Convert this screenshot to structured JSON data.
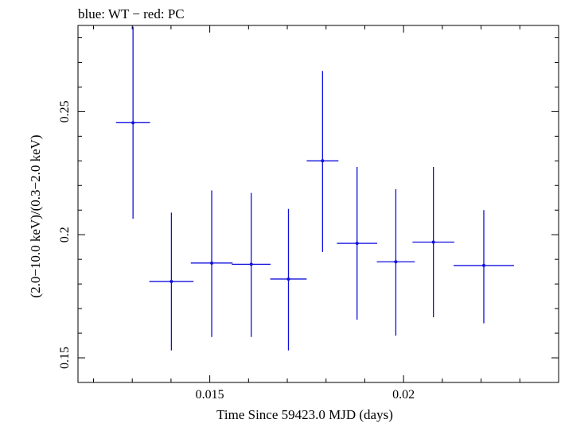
{
  "chart_data": {
    "type": "scatter",
    "title": "blue: WT − red: PC",
    "xlabel": "Time Since 59423.0 MJD (days)",
    "ylabel": "(2.0−10.0 keV)/(0.3−2.0 keV)",
    "xlim": [
      0.0116,
      0.024
    ],
    "ylim": [
      0.14,
      0.285
    ],
    "x_ticks": [
      {
        "value": 0.015,
        "label": "0.015"
      },
      {
        "value": 0.02,
        "label": "0.02"
      }
    ],
    "y_ticks": [
      {
        "value": 0.15,
        "label": "0.15"
      },
      {
        "value": 0.2,
        "label": "0.2"
      },
      {
        "value": 0.25,
        "label": "0.25"
      }
    ],
    "series": [
      {
        "name": "WT",
        "color": "#1010dd",
        "points": [
          {
            "x": 0.01302,
            "y": 0.2455,
            "xerr": 0.00044,
            "ylo": 0.2065,
            "yhi": 0.2845
          },
          {
            "x": 0.01401,
            "y": 0.181,
            "xerr": 0.00057,
            "ylo": 0.153,
            "yhi": 0.209
          },
          {
            "x": 0.01505,
            "y": 0.1885,
            "xerr": 0.00054,
            "ylo": 0.1585,
            "yhi": 0.218
          },
          {
            "x": 0.01607,
            "y": 0.188,
            "xerr": 0.0005,
            "ylo": 0.1585,
            "yhi": 0.217
          },
          {
            "x": 0.01703,
            "y": 0.182,
            "xerr": 0.00047,
            "ylo": 0.153,
            "yhi": 0.2105
          },
          {
            "x": 0.01791,
            "y": 0.23,
            "xerr": 0.00041,
            "ylo": 0.193,
            "yhi": 0.2665
          },
          {
            "x": 0.0188,
            "y": 0.1965,
            "xerr": 0.00052,
            "ylo": 0.1655,
            "yhi": 0.2275
          },
          {
            "x": 0.0198,
            "y": 0.189,
            "xerr": 0.00049,
            "ylo": 0.159,
            "yhi": 0.2185
          },
          {
            "x": 0.02077,
            "y": 0.197,
            "xerr": 0.00054,
            "ylo": 0.1665,
            "yhi": 0.2275
          },
          {
            "x": 0.02207,
            "y": 0.1875,
            "xerr": 0.00078,
            "ylo": 0.164,
            "yhi": 0.21
          }
        ]
      }
    ]
  }
}
